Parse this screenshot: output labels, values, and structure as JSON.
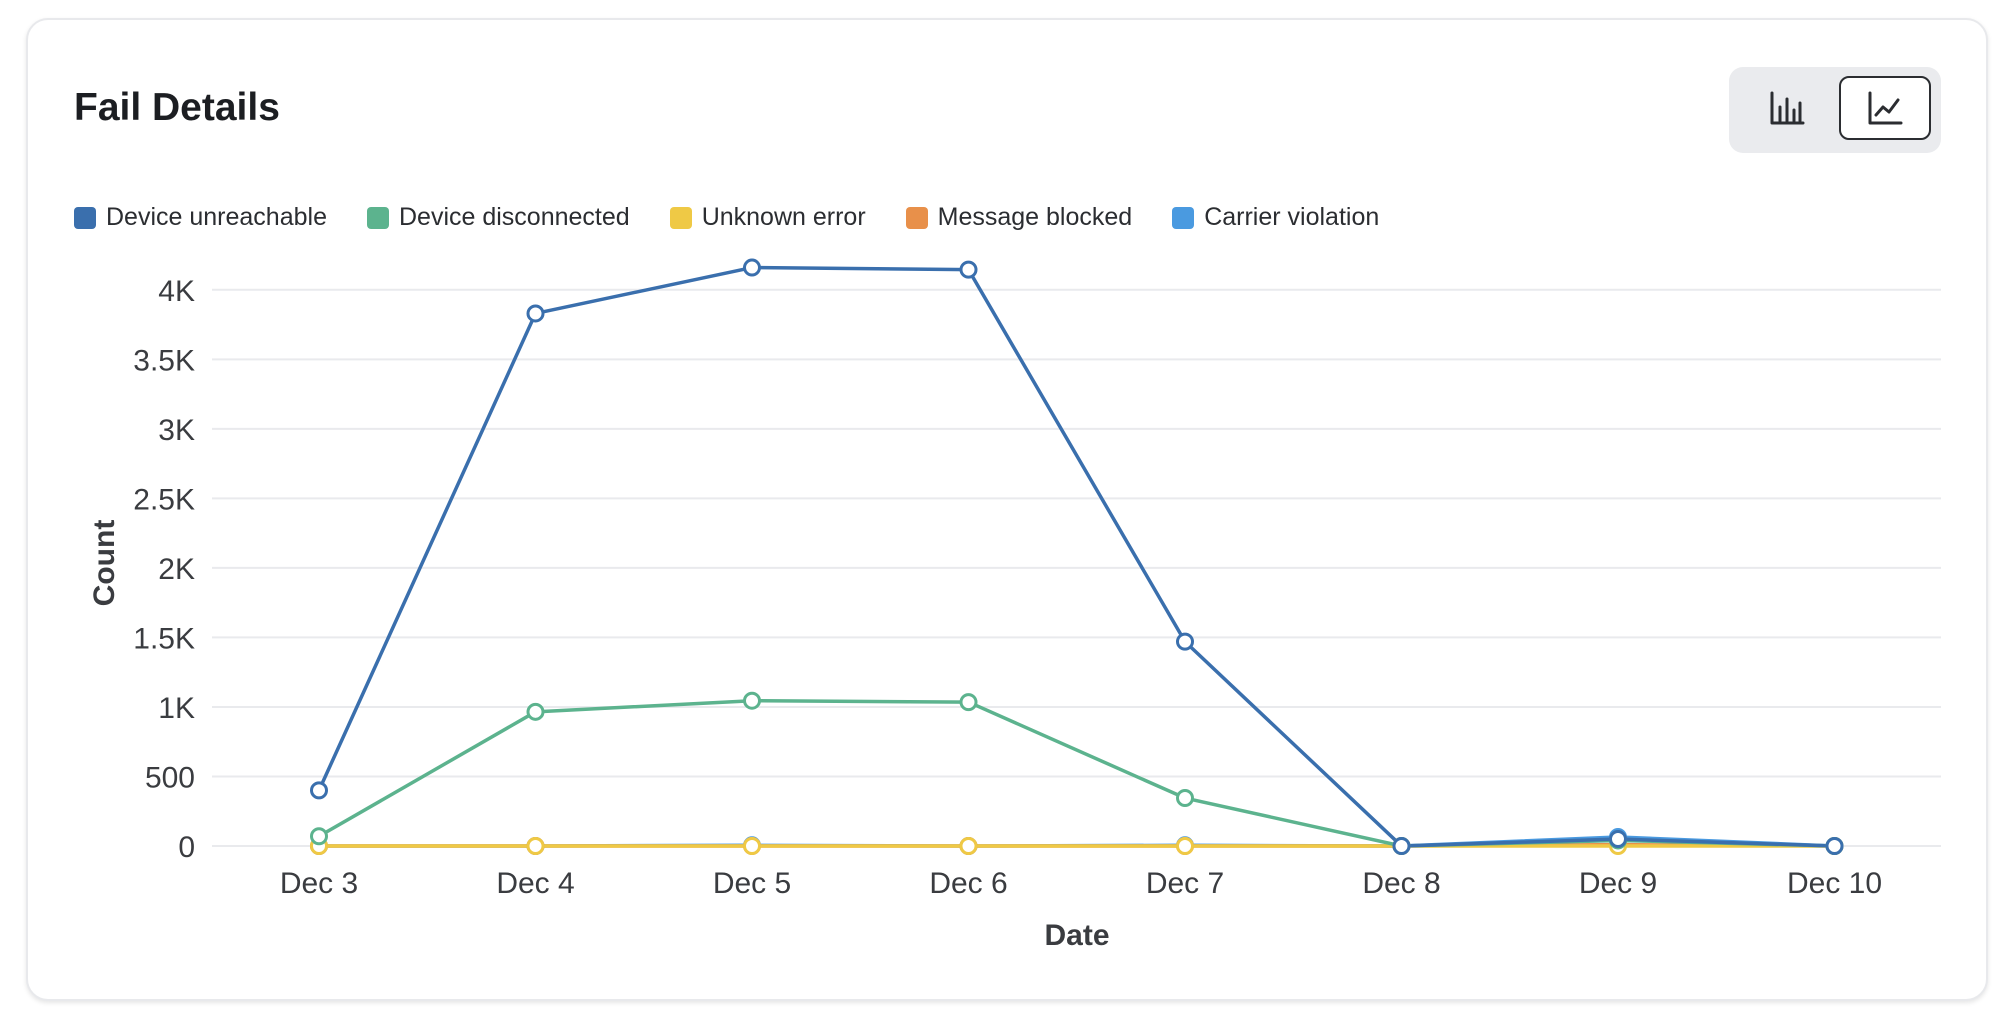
{
  "card": {
    "title": "Fail Details"
  },
  "toggle": {
    "options": [
      {
        "icon": "bar-chart-icon",
        "selected": false
      },
      {
        "icon": "line-chart-icon",
        "selected": true
      }
    ]
  },
  "chart_data": {
    "type": "line",
    "title": "Fail Details",
    "xlabel": "Date",
    "ylabel": "Count",
    "ylim": [
      0,
      4200
    ],
    "yticks": [
      0,
      500,
      1000,
      1500,
      2000,
      2500,
      3000,
      3500,
      4000
    ],
    "ytick_labels": [
      "0",
      "500",
      "1K",
      "1.5K",
      "2K",
      "2.5K",
      "3K",
      "3.5K",
      "4K"
    ],
    "categories": [
      "Dec 3",
      "Dec 4",
      "Dec 5",
      "Dec 6",
      "Dec 7",
      "Dec 8",
      "Dec 9",
      "Dec 10"
    ],
    "grid": true,
    "legend_position": "top-left",
    "series": [
      {
        "name": "Device unreachable",
        "color": "#3a6fad",
        "values": [
          400,
          3830,
          4160,
          4145,
          1470,
          0,
          50,
          0
        ]
      },
      {
        "name": "Device disconnected",
        "color": "#5cb38e",
        "values": [
          70,
          965,
          1045,
          1035,
          345,
          0,
          40,
          0
        ]
      },
      {
        "name": "Unknown error",
        "color": "#efc945",
        "values": [
          0,
          0,
          0,
          0,
          0,
          0,
          0,
          0
        ]
      },
      {
        "name": "Message blocked",
        "color": "#e8904a",
        "values": [
          0,
          0,
          0,
          0,
          0,
          0,
          10,
          0
        ]
      },
      {
        "name": "Carrier violation",
        "color": "#4a9ae0",
        "values": [
          0,
          0,
          5,
          0,
          5,
          0,
          65,
          0
        ]
      }
    ]
  }
}
